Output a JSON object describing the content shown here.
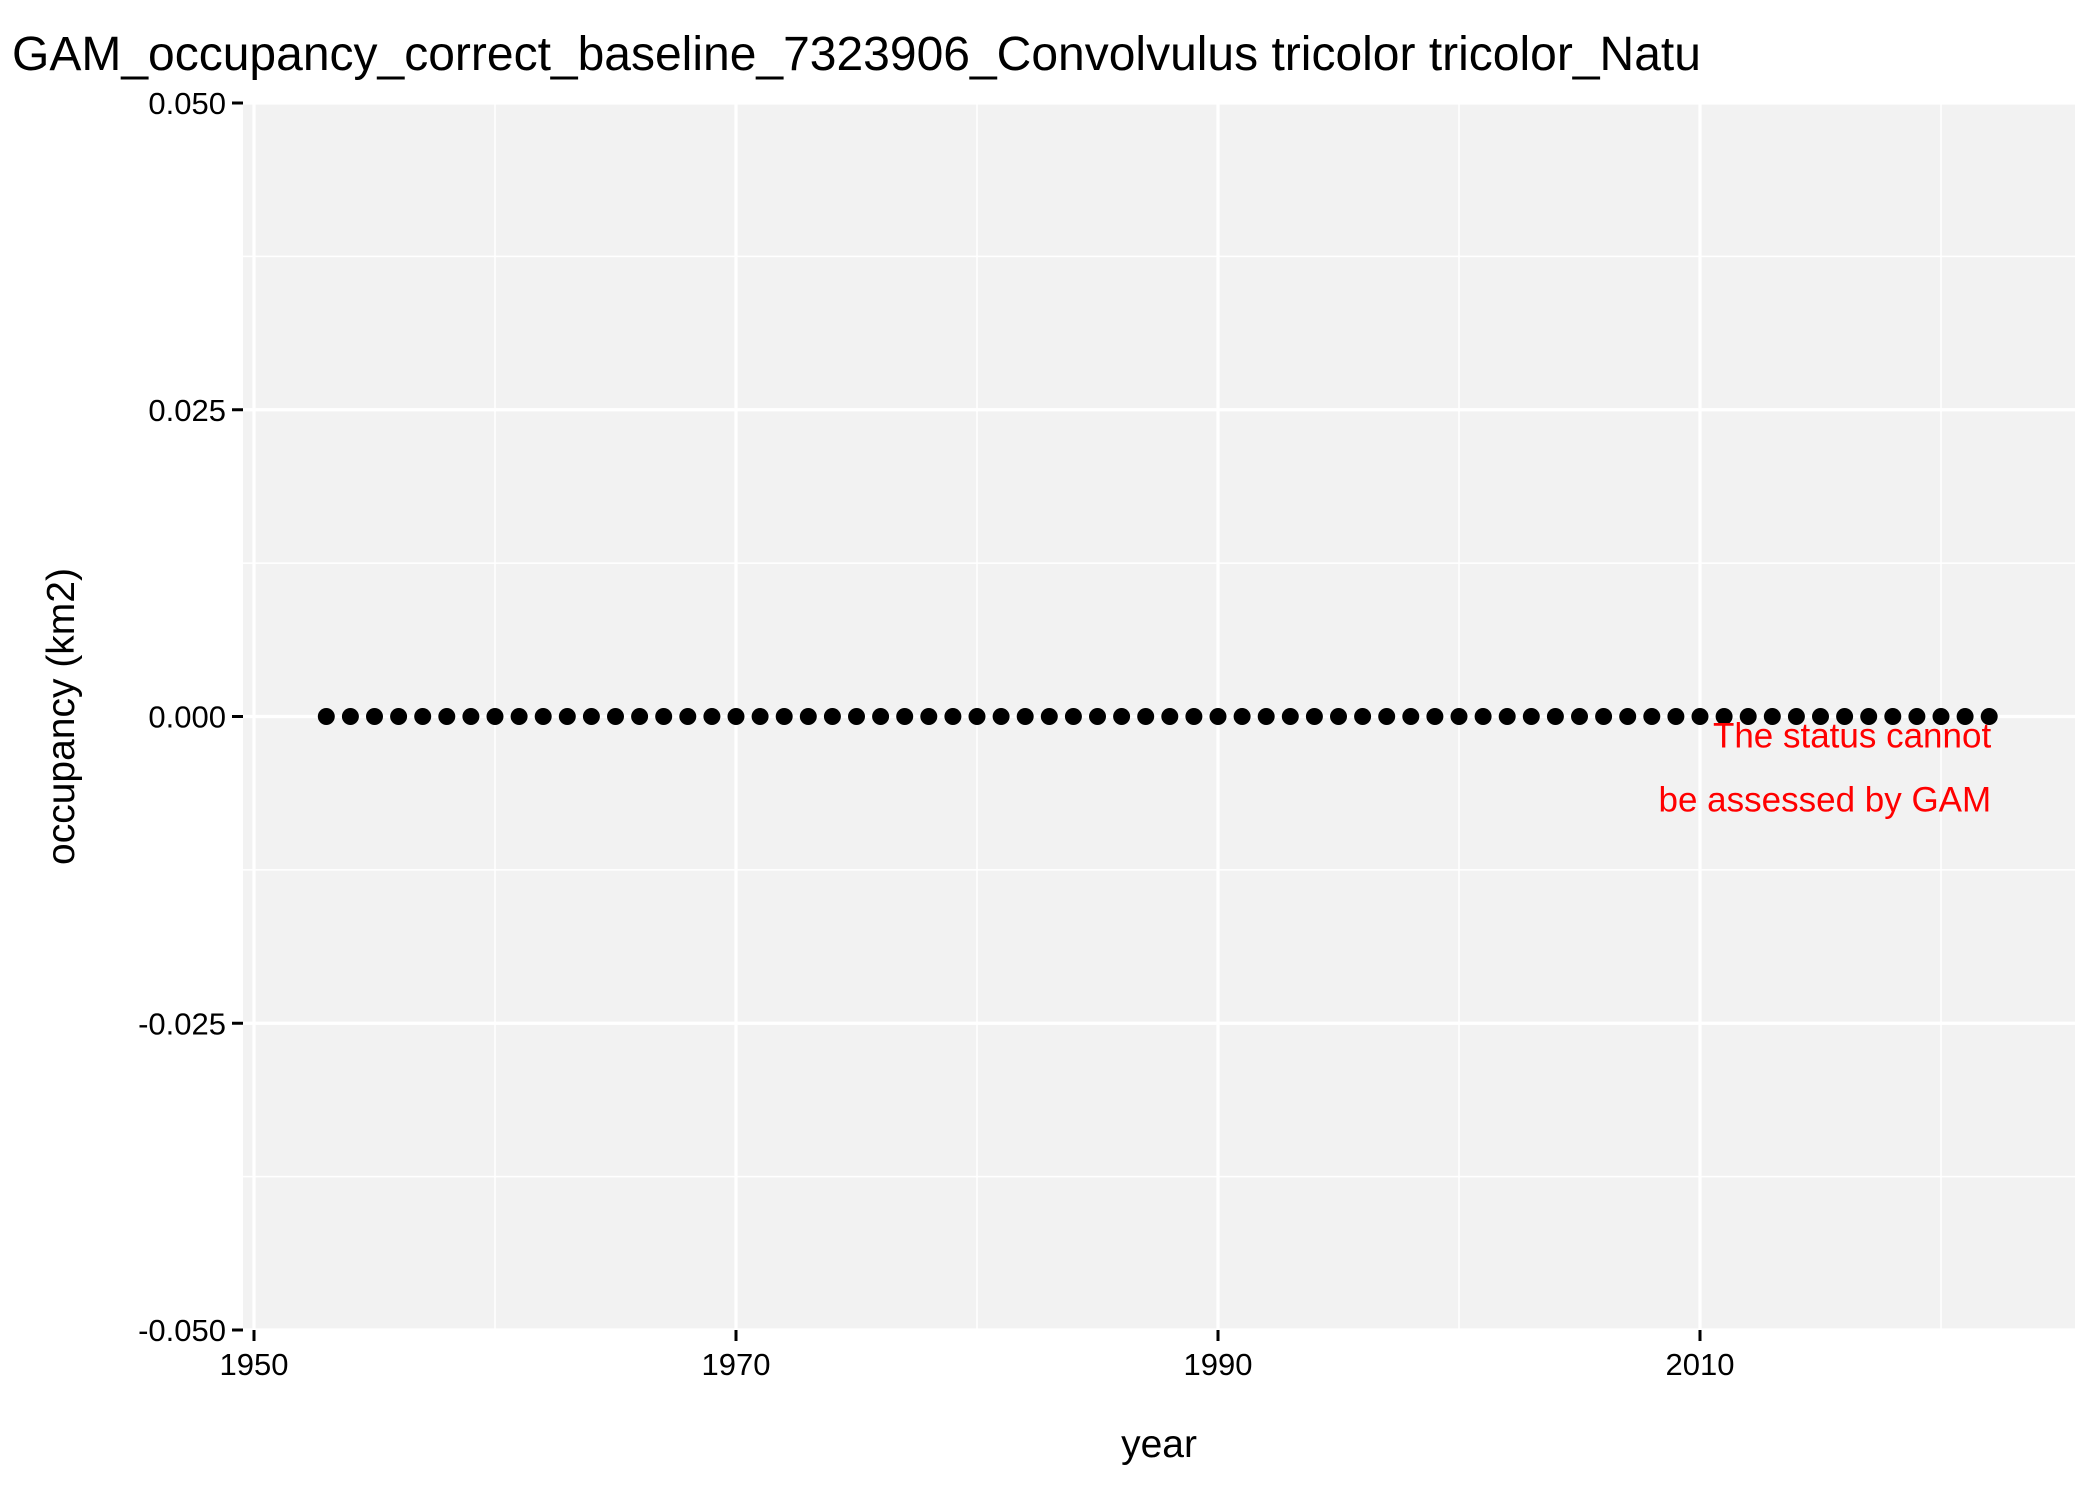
{
  "colors": {
    "panel_background": "#f2f2f2",
    "grid": "#ffffff",
    "point": "#000000",
    "annotation": "#ff0000",
    "text": "#000000"
  },
  "chart_data": {
    "type": "scatter",
    "title": "GAM_occupancy_correct_baseline_7323906_Convolvulus tricolor tricolor_Natu",
    "xlabel": "year",
    "ylabel": "occupancy (km2)",
    "xlim": [
      1950,
      2025
    ],
    "ylim": [
      -0.05,
      0.05
    ],
    "grid": true,
    "legend": "none",
    "x_ticks": [
      1950,
      1970,
      1990,
      2010
    ],
    "x_tick_labels": [
      "1950",
      "1970",
      "1990",
      "2010"
    ],
    "y_ticks": [
      -0.05,
      -0.025,
      0,
      0.025,
      0.05
    ],
    "y_tick_labels": [
      "-0.050",
      "-0.025",
      "0.000",
      "0.025",
      "0.050"
    ],
    "series": [
      {
        "x": [
          1953,
          1954,
          1955,
          1956,
          1957,
          1958,
          1959,
          1960,
          1961,
          1962,
          1963,
          1964,
          1965,
          1966,
          1967,
          1968,
          1969,
          1970,
          1971,
          1972,
          1973,
          1974,
          1975,
          1976,
          1977,
          1978,
          1979,
          1980,
          1981,
          1982,
          1983,
          1984,
          1985,
          1986,
          1987,
          1988,
          1989,
          1990,
          1991,
          1992,
          1993,
          1994,
          1995,
          1996,
          1997,
          1998,
          1999,
          2000,
          2001,
          2002,
          2003,
          2004,
          2005,
          2006,
          2007,
          2008,
          2009,
          2010,
          2011,
          2012,
          2013,
          2014,
          2015,
          2016,
          2017,
          2018,
          2019,
          2020,
          2021,
          2022
        ],
        "y": [
          0,
          0,
          0,
          0,
          0,
          0,
          0,
          0,
          0,
          0,
          0,
          0,
          0,
          0,
          0,
          0,
          0,
          0,
          0,
          0,
          0,
          0,
          0,
          0,
          0,
          0,
          0,
          0,
          0,
          0,
          0,
          0,
          0,
          0,
          0,
          0,
          0,
          0,
          0,
          0,
          0,
          0,
          0,
          0,
          0,
          0,
          0,
          0,
          0,
          0,
          0,
          0,
          0,
          0,
          0,
          0,
          0,
          0,
          0,
          0,
          0,
          0,
          0,
          0,
          0,
          0,
          0,
          0,
          0,
          0
        ]
      }
    ],
    "annotation": {
      "lines": [
        "The status cannot",
        "be assessed by GAM"
      ],
      "x": 2022,
      "y": 0
    }
  }
}
